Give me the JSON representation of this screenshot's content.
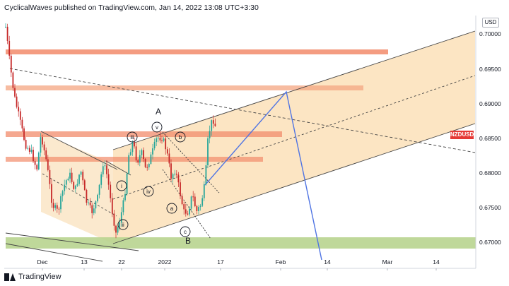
{
  "header": {
    "publisher": "CyclicalWaves published on TradingView.com, Jan 14, 2022 13:08 UTC+3:30"
  },
  "footer": {
    "logo_text": "TradingView"
  },
  "price_axis": {
    "currency": "USD",
    "labels": [
      "0.70000",
      "0.69500",
      "0.69000",
      "0.68500",
      "0.68000",
      "0.67500",
      "0.67000"
    ]
  },
  "time_axis": {
    "labels": [
      "Dec",
      "13",
      "22",
      "2022",
      "17",
      "Feb",
      "14",
      "Mar",
      "14"
    ]
  },
  "symbol_badge": "NZDUSD",
  "wave_labels": {
    "A": "A",
    "B": "B",
    "iii": "iii",
    "v": "v",
    "b": "b",
    "i": "i",
    "iv": "iv",
    "ii": "ii",
    "a": "a",
    "c": "c"
  },
  "colors": {
    "bull_candle": "#26a69a",
    "bear_candle": "#c62828",
    "zone_fill": "#fbe0b8",
    "resistance_zone": "#f28b6b",
    "support_zone": "#b8d48f",
    "projection_line": "#4f74e3",
    "badge": "#e53935"
  }
}
